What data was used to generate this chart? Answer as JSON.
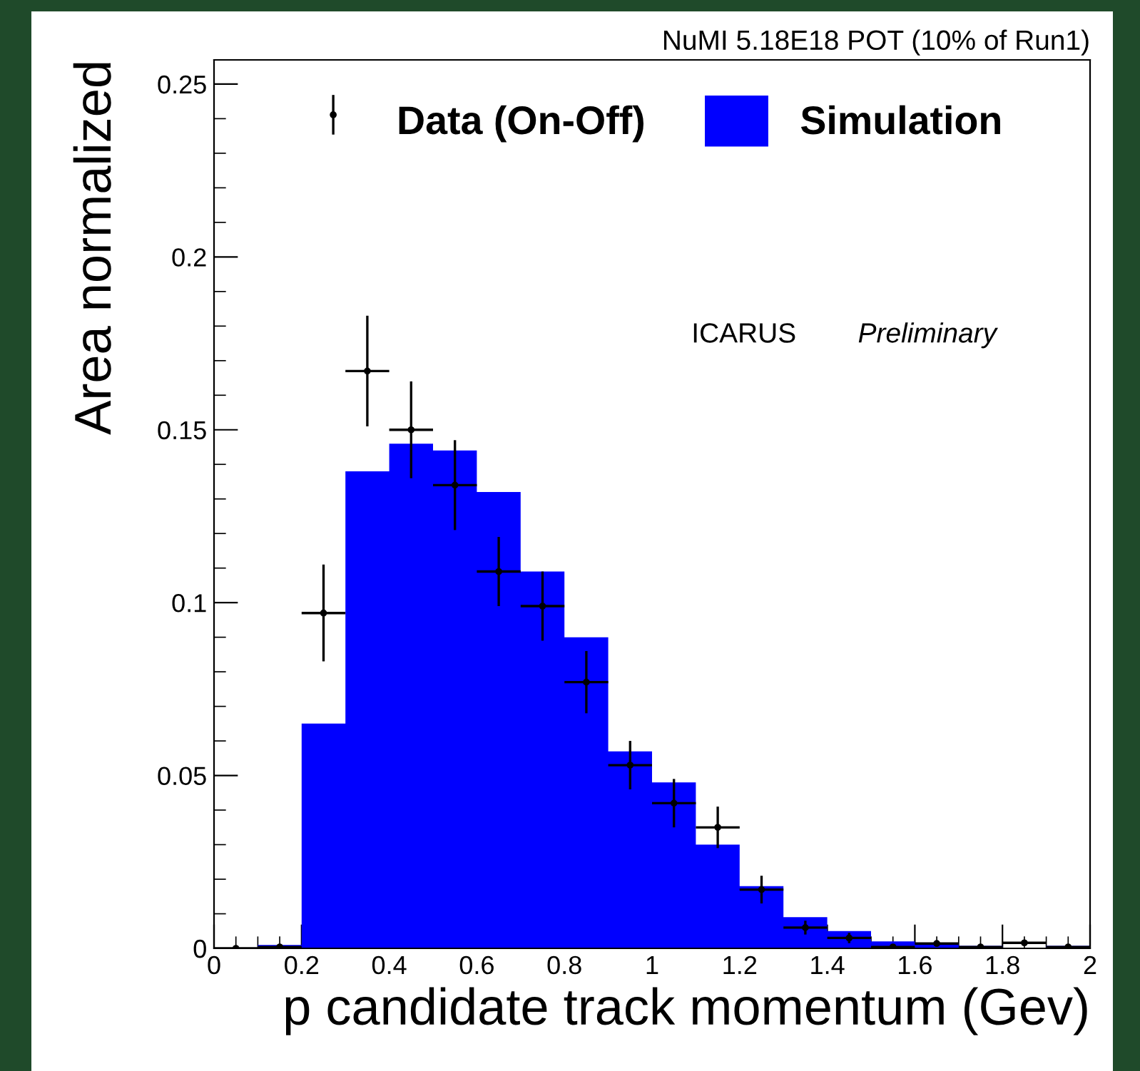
{
  "chart_data": {
    "type": "histogram",
    "xlabel": "p candidate track momentum (Gev)",
    "ylabel": "Area normalized",
    "annotations": [
      "NuMI 5.18E18 POT (10% of Run1)",
      "ICARUS",
      "Preliminary"
    ],
    "bins": [
      0,
      0.1,
      0.2,
      0.3,
      0.4,
      0.5,
      0.6,
      0.7,
      0.8,
      0.9,
      1.0,
      1.1,
      1.2,
      1.3,
      1.4,
      1.5,
      1.6,
      1.7,
      1.8,
      1.9,
      2.0
    ],
    "series": [
      {
        "name": "Simulation",
        "color": "#0000ff",
        "values": [
          0,
          0.001,
          0.065,
          0.138,
          0.146,
          0.144,
          0.132,
          0.109,
          0.09,
          0.057,
          0.048,
          0.03,
          0.018,
          0.009,
          0.005,
          0.002,
          0.0014,
          0.0007,
          0.0002,
          0.0007
        ]
      },
      {
        "name": "Data (On-Off)",
        "type": "scatter",
        "color": "#000000",
        "marker": "circle",
        "x": [
          0.05,
          0.15,
          0.25,
          0.35,
          0.45,
          0.55,
          0.65,
          0.75,
          0.85,
          0.95,
          1.05,
          1.15,
          1.25,
          1.35,
          1.45,
          1.55,
          1.65,
          1.75,
          1.85,
          1.95
        ],
        "values": [
          0,
          0.0004,
          0.097,
          0.167,
          0.15,
          0.134,
          0.109,
          0.099,
          0.077,
          0.053,
          0.042,
          0.035,
          0.017,
          0.006,
          0.003,
          0.0004,
          0.0014,
          0.0004,
          0.0016,
          0.0004
        ],
        "errors": [
          null,
          null,
          0.014,
          0.016,
          0.014,
          0.013,
          0.01,
          0.01,
          0.009,
          0.007,
          0.007,
          0.006,
          0.004,
          0.002,
          0.0015,
          null,
          null,
          null,
          null,
          null
        ],
        "xerrors": [
          0.05,
          0.05,
          0.05,
          0.05,
          0.05,
          0.05,
          0.05,
          0.05,
          0.05,
          0.05,
          0.05,
          0.05,
          0.05,
          0.05,
          0.05,
          0.05,
          0.05,
          0.05,
          0.05,
          0.05
        ]
      }
    ],
    "xlim": [
      0,
      2
    ],
    "ylim": [
      0,
      0.257
    ],
    "xticks": [
      0,
      0.2,
      0.4,
      0.6,
      0.8,
      1,
      1.2,
      1.4,
      1.6,
      1.8,
      2
    ],
    "yticks": [
      0,
      0.05,
      0.1,
      0.15,
      0.2,
      0.25
    ],
    "legend": "top",
    "grid": false
  }
}
